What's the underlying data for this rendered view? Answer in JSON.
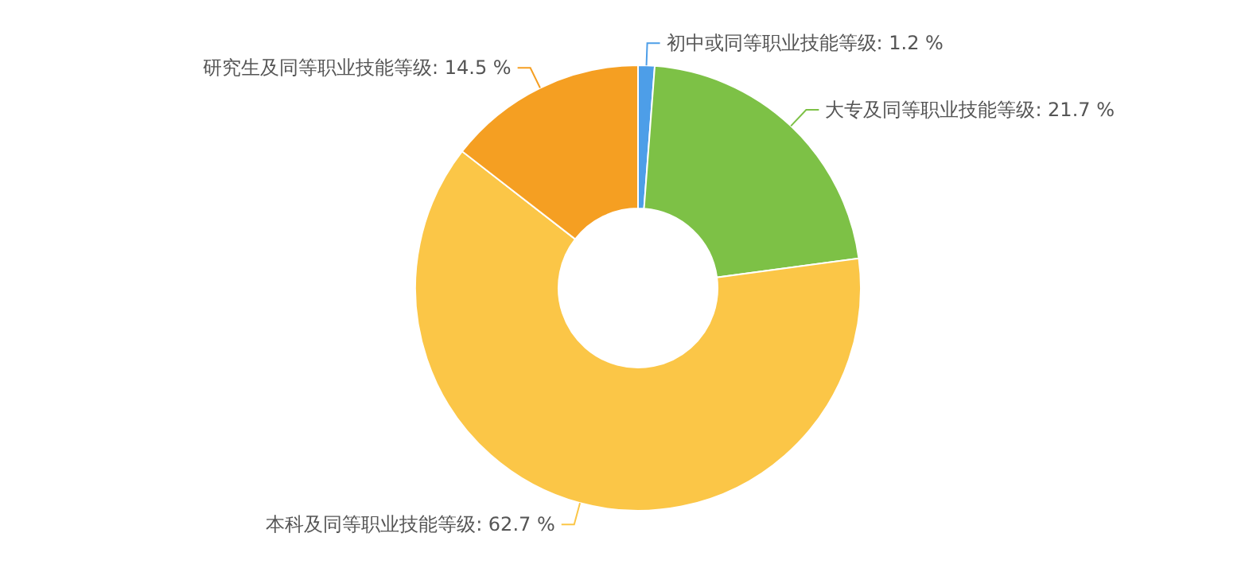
{
  "chart_data": {
    "type": "donut",
    "categories": [
      "初中或同等职业技能等级",
      "大专及同等职业技能等级",
      "本科及同等职业技能等级",
      "研究生及同等职业技能等级"
    ],
    "values": [
      1.2,
      21.7,
      62.7,
      14.5
    ],
    "colors": [
      "#4d9ee8",
      "#7dc146",
      "#fbc647",
      "#f59f22"
    ],
    "value_labels": [
      "1.2 %",
      "21.7 %",
      "62.7 %",
      "14.5 %"
    ],
    "legend": false
  }
}
